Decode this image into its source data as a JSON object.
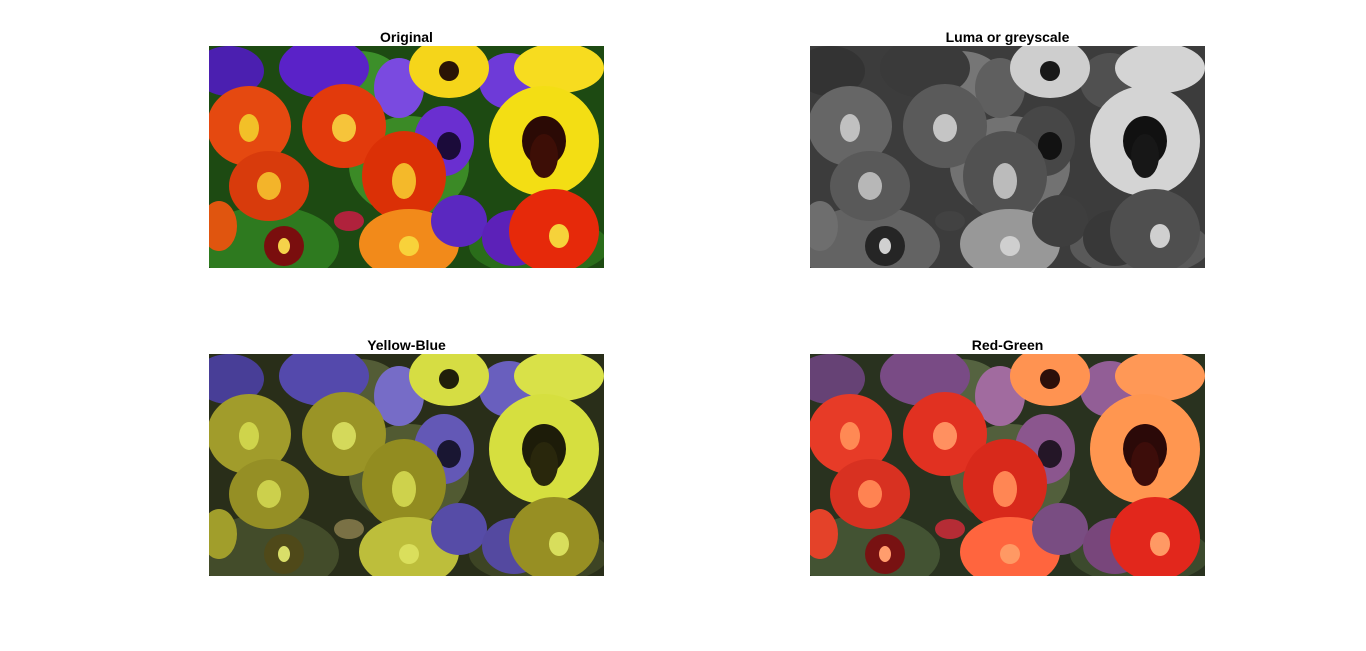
{
  "panels": [
    {
      "id": "original",
      "title": "Original"
    },
    {
      "id": "luma",
      "title": "Luma or greyscale"
    },
    {
      "id": "yellow-blue",
      "title": "Yellow-Blue"
    },
    {
      "id": "red-green",
      "title": "Red-Green"
    }
  ]
}
